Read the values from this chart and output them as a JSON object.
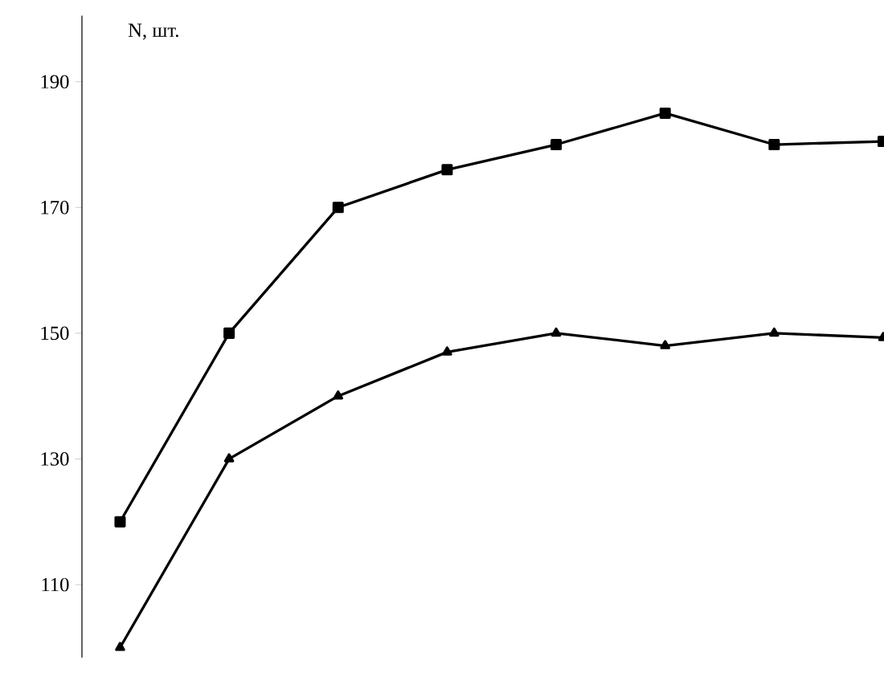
{
  "chart_data": {
    "type": "line",
    "ylabel": "N, шт.",
    "ylim": [
      98.4,
      200.5
    ],
    "yticks": [
      110,
      130,
      150,
      170,
      190
    ],
    "tick_labels": "y",
    "grid": false,
    "legend": false,
    "line_style": "solid",
    "categories": [
      null,
      null,
      null,
      null,
      null,
      null,
      null,
      null
    ],
    "series": [
      {
        "color": "#000000",
        "marker": "square",
        "values": [
          120,
          150,
          170,
          176,
          180,
          185,
          180,
          180.5
        ]
      },
      {
        "color": "#000000",
        "marker": "triangle",
        "values": [
          100,
          130,
          140,
          147,
          150,
          148,
          150,
          149.3
        ]
      }
    ]
  }
}
